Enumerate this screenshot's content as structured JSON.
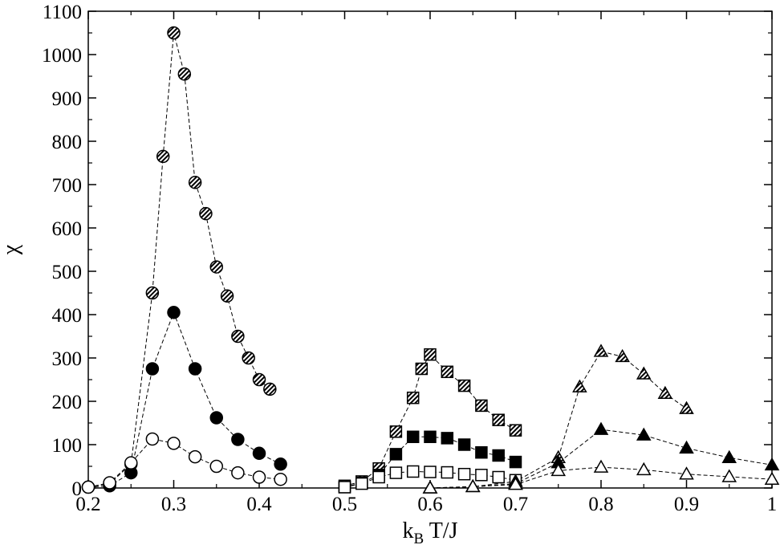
{
  "chart_data": {
    "type": "scatter",
    "xlabel": {
      "main": "k",
      "sub": "B",
      "rest": " T/J"
    },
    "ylabel": "χ",
    "xlim": [
      0.2,
      1.0
    ],
    "ylim": [
      0,
      1100
    ],
    "xticks": [
      "0.2",
      "0.3",
      "0.4",
      "0.5",
      "0.6",
      "0.7",
      "0.8",
      "0.9",
      "1"
    ],
    "xtick_values": [
      0.2,
      0.3,
      0.4,
      0.5,
      0.6,
      0.7,
      0.8,
      0.9,
      1.0
    ],
    "yticks": [
      "0",
      "100",
      "200",
      "300",
      "400",
      "500",
      "600",
      "700",
      "800",
      "900",
      "1000",
      "1100"
    ],
    "ytick_values": [
      0,
      100,
      200,
      300,
      400,
      500,
      600,
      700,
      800,
      900,
      1000,
      1100
    ],
    "line_style": "dashed",
    "series": [
      {
        "marker": "circle",
        "fill": "hatched",
        "points": [
          [
            0.2,
            2
          ],
          [
            0.225,
            10
          ],
          [
            0.25,
            55
          ],
          [
            0.275,
            450
          ],
          [
            0.2875,
            765
          ],
          [
            0.3,
            1050
          ],
          [
            0.3125,
            955
          ],
          [
            0.325,
            705
          ],
          [
            0.3375,
            633
          ],
          [
            0.35,
            510
          ],
          [
            0.3625,
            443
          ],
          [
            0.375,
            350
          ],
          [
            0.3875,
            300
          ],
          [
            0.4,
            250
          ],
          [
            0.4125,
            228
          ]
        ]
      },
      {
        "marker": "circle",
        "fill": "filled",
        "points": [
          [
            0.2,
            2
          ],
          [
            0.225,
            5
          ],
          [
            0.25,
            35
          ],
          [
            0.275,
            275
          ],
          [
            0.3,
            405
          ],
          [
            0.325,
            275
          ],
          [
            0.35,
            162
          ],
          [
            0.375,
            112
          ],
          [
            0.4,
            80
          ],
          [
            0.425,
            55
          ]
        ]
      },
      {
        "marker": "circle",
        "fill": "open",
        "points": [
          [
            0.2,
            2
          ],
          [
            0.225,
            12
          ],
          [
            0.25,
            58
          ],
          [
            0.275,
            113
          ],
          [
            0.3,
            103
          ],
          [
            0.325,
            72
          ],
          [
            0.35,
            50
          ],
          [
            0.375,
            35
          ],
          [
            0.4,
            25
          ],
          [
            0.425,
            20
          ]
        ]
      },
      {
        "marker": "square",
        "fill": "hatched",
        "points": [
          [
            0.5,
            5
          ],
          [
            0.52,
            15
          ],
          [
            0.54,
            45
          ],
          [
            0.56,
            130
          ],
          [
            0.58,
            208
          ],
          [
            0.59,
            275
          ],
          [
            0.6,
            308
          ],
          [
            0.62,
            268
          ],
          [
            0.64,
            236
          ],
          [
            0.66,
            190
          ],
          [
            0.68,
            157
          ],
          [
            0.7,
            133
          ]
        ]
      },
      {
        "marker": "square",
        "fill": "filled",
        "points": [
          [
            0.5,
            2
          ],
          [
            0.52,
            12
          ],
          [
            0.54,
            30
          ],
          [
            0.56,
            78
          ],
          [
            0.58,
            118
          ],
          [
            0.6,
            118
          ],
          [
            0.62,
            115
          ],
          [
            0.64,
            100
          ],
          [
            0.66,
            82
          ],
          [
            0.68,
            75
          ],
          [
            0.7,
            60
          ]
        ]
      },
      {
        "marker": "square",
        "fill": "open",
        "points": [
          [
            0.5,
            2
          ],
          [
            0.52,
            10
          ],
          [
            0.54,
            25
          ],
          [
            0.56,
            35
          ],
          [
            0.58,
            38
          ],
          [
            0.6,
            37
          ],
          [
            0.62,
            36
          ],
          [
            0.64,
            32
          ],
          [
            0.66,
            30
          ],
          [
            0.68,
            25
          ],
          [
            0.7,
            18
          ]
        ]
      },
      {
        "marker": "triangle",
        "fill": "hatched",
        "points": [
          [
            0.6,
            0
          ],
          [
            0.65,
            3
          ],
          [
            0.7,
            15
          ],
          [
            0.75,
            70
          ],
          [
            0.775,
            233
          ],
          [
            0.8,
            315
          ],
          [
            0.825,
            303
          ],
          [
            0.85,
            263
          ],
          [
            0.875,
            218
          ],
          [
            0.9,
            183
          ]
        ]
      },
      {
        "marker": "triangle",
        "fill": "filled",
        "points": [
          [
            0.6,
            0
          ],
          [
            0.65,
            3
          ],
          [
            0.7,
            10
          ],
          [
            0.75,
            58
          ],
          [
            0.8,
            135
          ],
          [
            0.85,
            122
          ],
          [
            0.9,
            92
          ],
          [
            0.95,
            70
          ],
          [
            1.0,
            53
          ]
        ]
      },
      {
        "marker": "triangle",
        "fill": "open",
        "points": [
          [
            0.6,
            0
          ],
          [
            0.65,
            3
          ],
          [
            0.7,
            8
          ],
          [
            0.75,
            40
          ],
          [
            0.8,
            48
          ],
          [
            0.85,
            42
          ],
          [
            0.9,
            32
          ],
          [
            0.95,
            26
          ],
          [
            1.0,
            20
          ]
        ]
      }
    ]
  }
}
